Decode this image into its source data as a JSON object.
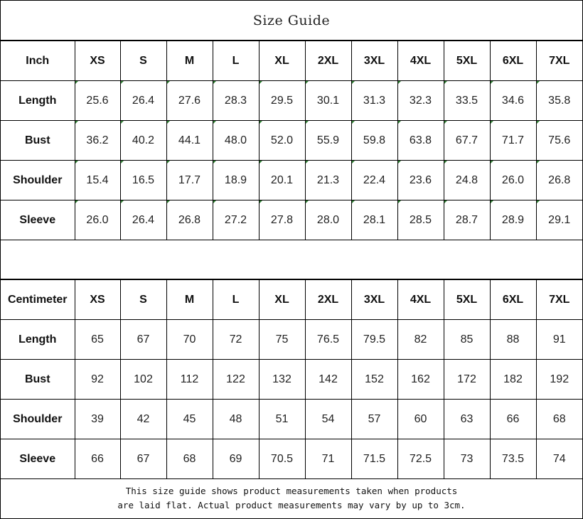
{
  "title": "Size Guide",
  "sizes": [
    "XS",
    "S",
    "M",
    "L",
    "XL",
    "2XL",
    "3XL",
    "4XL",
    "5XL",
    "6XL",
    "7XL"
  ],
  "marker_color": "#2e7d32",
  "inch_table": {
    "unit_label": "Inch",
    "rows": [
      {
        "label": "Length",
        "values": [
          "25.6",
          "26.4",
          "27.6",
          "28.3",
          "29.5",
          "30.1",
          "31.3",
          "32.3",
          "33.5",
          "34.6",
          "35.8"
        ]
      },
      {
        "label": "Bust",
        "values": [
          "36.2",
          "40.2",
          "44.1",
          "48.0",
          "52.0",
          "55.9",
          "59.8",
          "63.8",
          "67.7",
          "71.7",
          "75.6"
        ]
      },
      {
        "label": "Shoulder",
        "values": [
          "15.4",
          "16.5",
          "17.7",
          "18.9",
          "20.1",
          "21.3",
          "22.4",
          "23.6",
          "24.8",
          "26.0",
          "26.8"
        ]
      },
      {
        "label": "Sleeve",
        "values": [
          "26.0",
          "26.4",
          "26.8",
          "27.2",
          "27.8",
          "28.0",
          "28.1",
          "28.5",
          "28.7",
          "28.9",
          "29.1"
        ]
      }
    ]
  },
  "cm_table": {
    "unit_label": "Centimeter",
    "rows": [
      {
        "label": "Length",
        "values": [
          "65",
          "67",
          "70",
          "72",
          "75",
          "76.5",
          "79.5",
          "82",
          "85",
          "88",
          "91"
        ]
      },
      {
        "label": "Bust",
        "values": [
          "92",
          "102",
          "112",
          "122",
          "132",
          "142",
          "152",
          "162",
          "172",
          "182",
          "192"
        ]
      },
      {
        "label": "Shoulder",
        "values": [
          "39",
          "42",
          "45",
          "48",
          "51",
          "54",
          "57",
          "60",
          "63",
          "66",
          "68"
        ]
      },
      {
        "label": "Sleeve",
        "values": [
          "66",
          "67",
          "68",
          "69",
          "70.5",
          "71",
          "71.5",
          "72.5",
          "73",
          "73.5",
          "74"
        ]
      }
    ]
  },
  "note": {
    "line1": "This size guide shows product measurements taken when products",
    "line2": "are laid flat. Actual product measurements may vary by up to 3cm."
  }
}
